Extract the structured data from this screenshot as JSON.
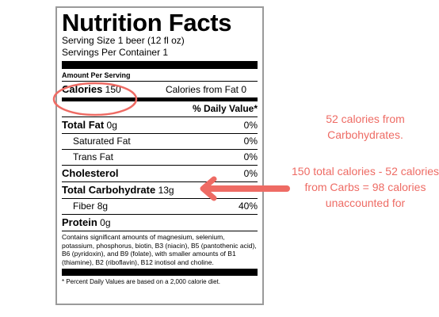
{
  "label": {
    "title": "Nutrition Facts",
    "serving_size": "Serving Size 1 beer (12 fl oz)",
    "servings_per_container": "Servings Per Container  1",
    "amount_per_serving": "Amount Per Serving",
    "calories_label": "Calories",
    "calories_value": "150",
    "calories_from_fat": "Calories from Fat  0",
    "daily_value_header": "% Daily Value*",
    "nutrients": [
      {
        "name": "Total Fat",
        "amount": "0g",
        "dv": "0%"
      },
      {
        "name": "Saturated Fat",
        "amount": "",
        "dv": "0%"
      },
      {
        "name": "Trans Fat",
        "amount": "",
        "dv": "0%"
      },
      {
        "name": "Cholesterol",
        "amount": "",
        "dv": "0%"
      },
      {
        "name": "Total Carbohydrate",
        "amount": "13g",
        "dv": ""
      },
      {
        "name": "Fiber",
        "amount": "8g",
        "dv": "40%"
      },
      {
        "name": "Protein",
        "amount": "0g",
        "dv": ""
      }
    ],
    "note": "Contains significant amounts of magnesium, selenium, potassium, phosphorus, biotin, B3 (niacin), B5 (pantothenic acid), B6 (pyridoxin), and B9 (folate), with smaller amounts of B1 (thiamine), B2 (riboflavin), B12 inotisol and choline.",
    "footnote": "* Percent Daily Values are based on a 2,000 calorie diet."
  },
  "annotations": {
    "carb_calories": "52 calories from Carbohydrates.",
    "unaccounted": "150 total calories - 52 calories from Carbs = 98 calories unaccounted for"
  },
  "colors": {
    "accent": "#ee6b64",
    "border": "#9a9a9a"
  },
  "icons": {
    "arrow": "left-arrow-icon",
    "circle": "highlight-circle"
  }
}
